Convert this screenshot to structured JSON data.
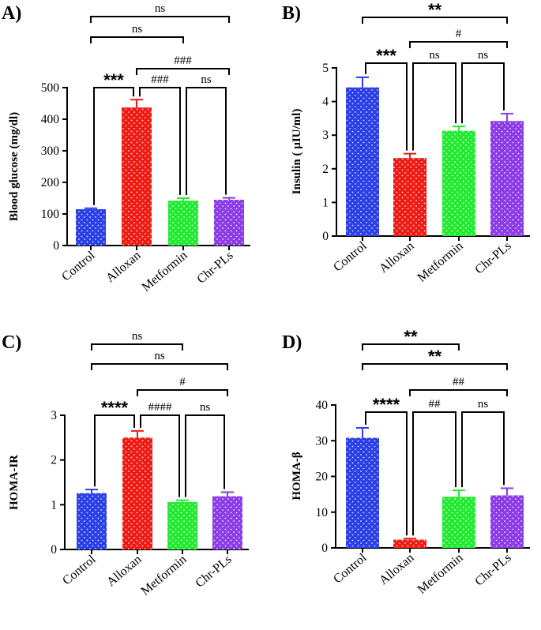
{
  "colors": {
    "Control": "#2a3fe6",
    "Alloxan": "#ee1b14",
    "Metformin": "#22ea30",
    "Chr-PLs": "#8b3ce6"
  },
  "chart_data": [
    {
      "panel": "A)",
      "type": "bar",
      "categories": [
        "Control",
        "Alloxan",
        "Metformin",
        "Chr-PLs"
      ],
      "values": [
        115,
        437,
        142,
        145
      ],
      "errors": [
        3,
        25,
        8,
        6
      ],
      "ylabel": "Blood glucose (mg/dl)",
      "ylim": [
        0,
        500
      ],
      "yticks": [
        0,
        100,
        200,
        300,
        400,
        500
      ],
      "significance": [
        {
          "from": 0,
          "to": 3,
          "label": "ns"
        },
        {
          "from": 0,
          "to": 2,
          "label": "ns"
        },
        {
          "from": 1,
          "to": 3,
          "label": "###"
        },
        {
          "from": 0,
          "to": 1,
          "label": "***"
        },
        {
          "from": 1,
          "to": 2,
          "label": "###"
        },
        {
          "from": 2,
          "to": 3,
          "label": "ns"
        }
      ]
    },
    {
      "panel": "B)",
      "type": "bar",
      "categories": [
        "Control",
        "Alloxan",
        "Metformin",
        "Chr-PLs"
      ],
      "values": [
        4.42,
        2.32,
        3.13,
        3.42
      ],
      "errors": [
        0.3,
        0.13,
        0.13,
        0.22
      ],
      "ylabel": "Insulin ( µIU/ml)",
      "ylim": [
        0,
        5
      ],
      "yticks": [
        0,
        1,
        2,
        3,
        4,
        5
      ],
      "significance": [
        {
          "from": 0,
          "to": 3,
          "label": "**"
        },
        {
          "from": 1,
          "to": 3,
          "label": "#"
        },
        {
          "from": 0,
          "to": 1,
          "label": "***"
        },
        {
          "from": 1,
          "to": 2,
          "label": "ns"
        },
        {
          "from": 2,
          "to": 3,
          "label": "ns"
        }
      ]
    },
    {
      "panel": "C)",
      "type": "bar",
      "categories": [
        "Control",
        "Alloxan",
        "Metformin",
        "Chr-PLs"
      ],
      "values": [
        1.26,
        2.5,
        1.06,
        1.19
      ],
      "errors": [
        0.08,
        0.15,
        0.04,
        0.09
      ],
      "ylabel": "HOMA-IR",
      "ylim": [
        0,
        3
      ],
      "yticks": [
        0,
        1,
        2,
        3
      ],
      "significance": [
        {
          "from": 0,
          "to": 2,
          "label": "ns"
        },
        {
          "from": 0,
          "to": 3,
          "label": "ns"
        },
        {
          "from": 1,
          "to": 3,
          "label": "#"
        },
        {
          "from": 0,
          "to": 1,
          "label": "****"
        },
        {
          "from": 1,
          "to": 2,
          "label": "####"
        },
        {
          "from": 2,
          "to": 3,
          "label": "ns"
        }
      ]
    },
    {
      "panel": "D)",
      "type": "bar",
      "categories": [
        "Control",
        "Alloxan",
        "Metformin",
        "Chr-PLs"
      ],
      "values": [
        30.8,
        2.3,
        14.3,
        14.7
      ],
      "errors": [
        2.8,
        0.3,
        1.8,
        2.0
      ],
      "ylabel": "HOMA-β",
      "ylim": [
        0,
        40
      ],
      "yticks": [
        0,
        10,
        20,
        30,
        40
      ],
      "significance": [
        {
          "from": 0,
          "to": 2,
          "label": "**"
        },
        {
          "from": 0,
          "to": 3,
          "label": "**"
        },
        {
          "from": 1,
          "to": 3,
          "label": "##"
        },
        {
          "from": 0,
          "to": 1,
          "label": "****"
        },
        {
          "from": 1,
          "to": 2,
          "label": "##"
        },
        {
          "from": 2,
          "to": 3,
          "label": "ns"
        }
      ]
    }
  ]
}
